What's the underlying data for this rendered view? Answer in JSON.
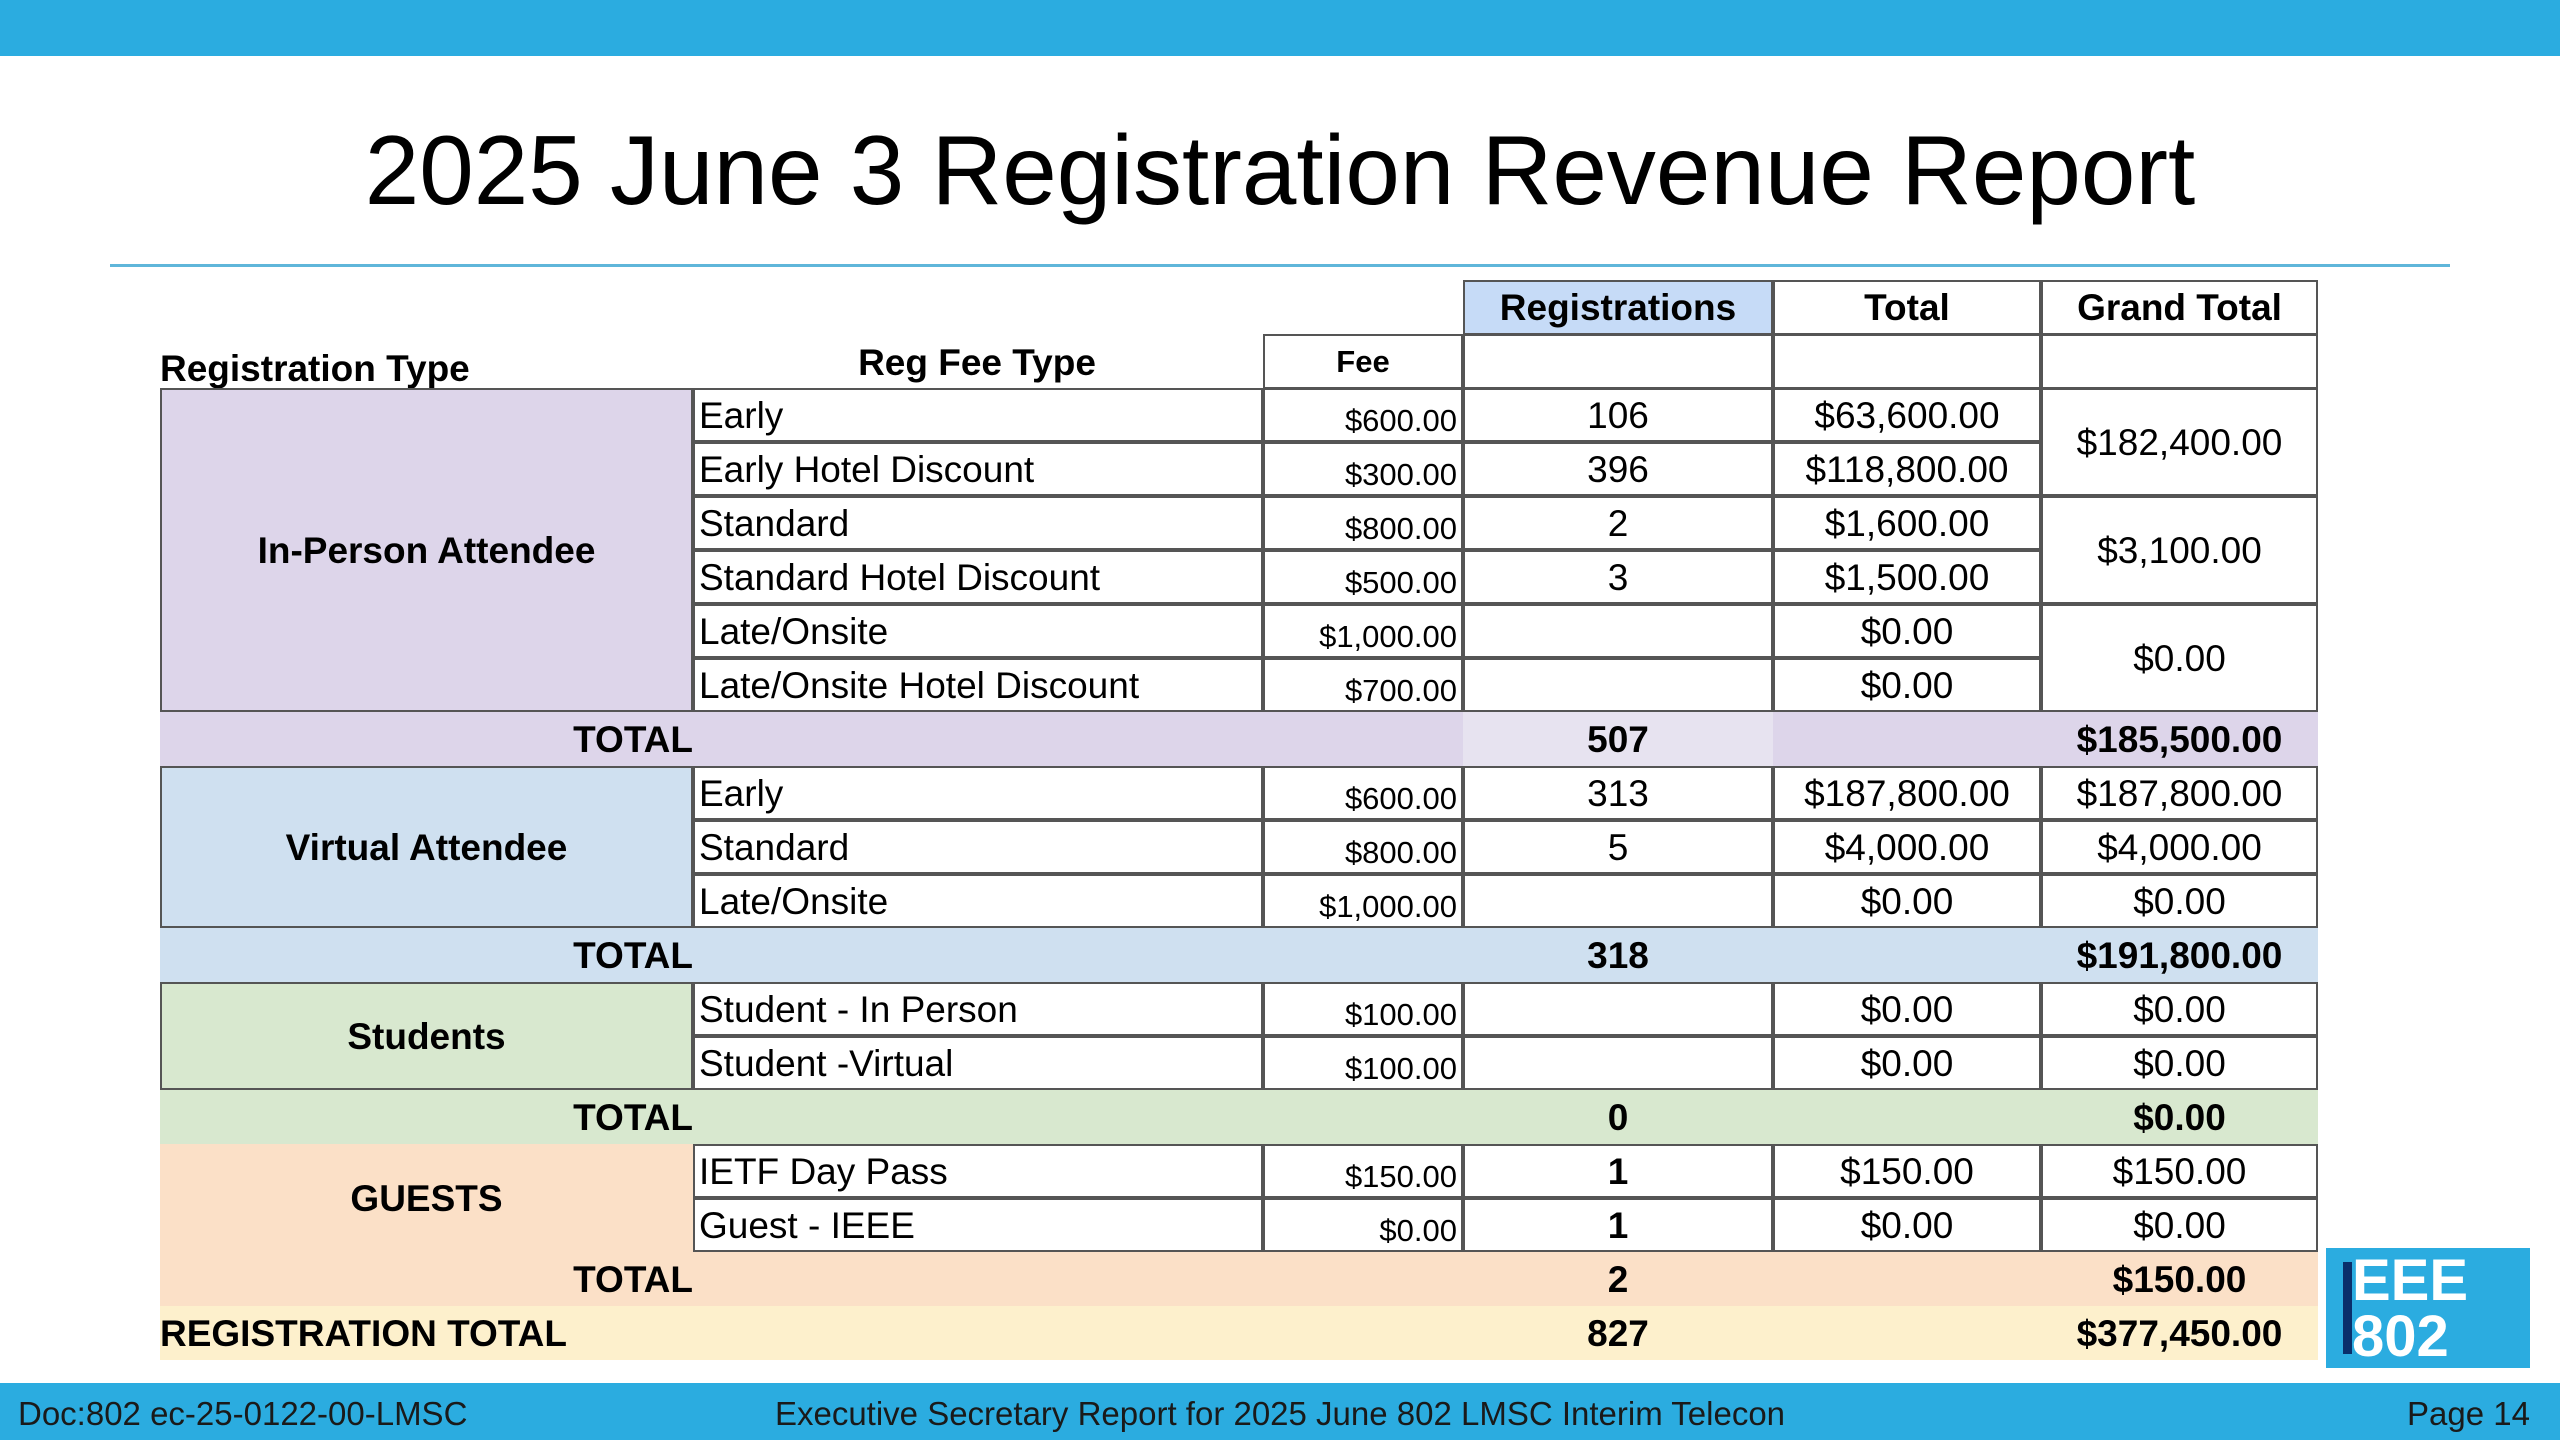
{
  "title": "2025 June 3 Registration Revenue Report",
  "colors": {
    "accent": "#2bace0",
    "in_person": "#ddd5ea",
    "virtual": "#cfe0f0",
    "students": "#d8e8cf",
    "guests": "#fbe0c7",
    "grand_total": "#fdf0cc",
    "registrations_header": "#c6dbf7"
  },
  "table": {
    "headers": {
      "registration_type": "Registration Type",
      "reg_fee_type": "Reg Fee Type",
      "fee": "Fee",
      "registrations": "Registrations",
      "total": "Total",
      "grand_total": "Grand Total"
    },
    "in_person": {
      "label": "In-Person Attendee",
      "rows": [
        {
          "type": "Early",
          "fee": "$600.00",
          "registrations": "106",
          "total": "$63,600.00"
        },
        {
          "type": "Early Hotel Discount",
          "fee": "$300.00",
          "registrations": "396",
          "total": "$118,800.00"
        },
        {
          "type": "Standard",
          "fee": "$800.00",
          "registrations": "2",
          "total": "$1,600.00"
        },
        {
          "type": "Standard Hotel Discount",
          "fee": "$500.00",
          "registrations": "3",
          "total": "$1,500.00"
        },
        {
          "type": "Late/Onsite",
          "fee": "$1,000.00",
          "registrations": "",
          "total": "$0.00"
        },
        {
          "type": "Late/Onsite Hotel Discount",
          "fee": "$700.00",
          "registrations": "",
          "total": "$0.00"
        }
      ],
      "grand_totals": [
        "$182,400.00",
        "$3,100.00",
        "$0.00"
      ],
      "total_label": "TOTAL",
      "total_registrations": "507",
      "total_grand": "$185,500.00"
    },
    "virtual": {
      "label": "Virtual Attendee",
      "rows": [
        {
          "type": "Early",
          "fee": "$600.00",
          "registrations": "313",
          "total": "$187,800.00",
          "grand": "$187,800.00"
        },
        {
          "type": "Standard",
          "fee": "$800.00",
          "registrations": "5",
          "total": "$4,000.00",
          "grand": "$4,000.00"
        },
        {
          "type": "Late/Onsite",
          "fee": "$1,000.00",
          "registrations": "",
          "total": "$0.00",
          "grand": "$0.00"
        }
      ],
      "total_label": "TOTAL",
      "total_registrations": "318",
      "total_grand": "$191,800.00"
    },
    "students": {
      "label": "Students",
      "rows": [
        {
          "type": "Student - In Person",
          "fee": "$100.00",
          "registrations": "",
          "total": "$0.00",
          "grand": "$0.00"
        },
        {
          "type": "Student -Virtual",
          "fee": "$100.00",
          "registrations": "",
          "total": "$0.00",
          "grand": "$0.00"
        }
      ],
      "total_label": "TOTAL",
      "total_registrations": "0",
      "total_grand": "$0.00"
    },
    "guests": {
      "label": "GUESTS",
      "rows": [
        {
          "type": "IETF Day Pass",
          "fee": "$150.00",
          "registrations": "1",
          "total": "$150.00",
          "grand": "$150.00"
        },
        {
          "type": "Guest - IEEE",
          "fee": "$0.00",
          "registrations": "1",
          "total": "$0.00",
          "grand": "$0.00"
        }
      ],
      "total_label": "TOTAL",
      "total_registrations": "2",
      "total_grand": "$150.00"
    },
    "registration_total": {
      "label": "REGISTRATION TOTAL",
      "registrations": "827",
      "grand": "$377,450.00"
    }
  },
  "logo": {
    "line1": "EEE",
    "line2": "802"
  },
  "footer": {
    "doc": "Doc:802 ec-25-0122-00-LMSC",
    "center": "Executive Secretary Report for 2025 June 802 LMSC Interim Telecon",
    "page": "Page 14"
  }
}
